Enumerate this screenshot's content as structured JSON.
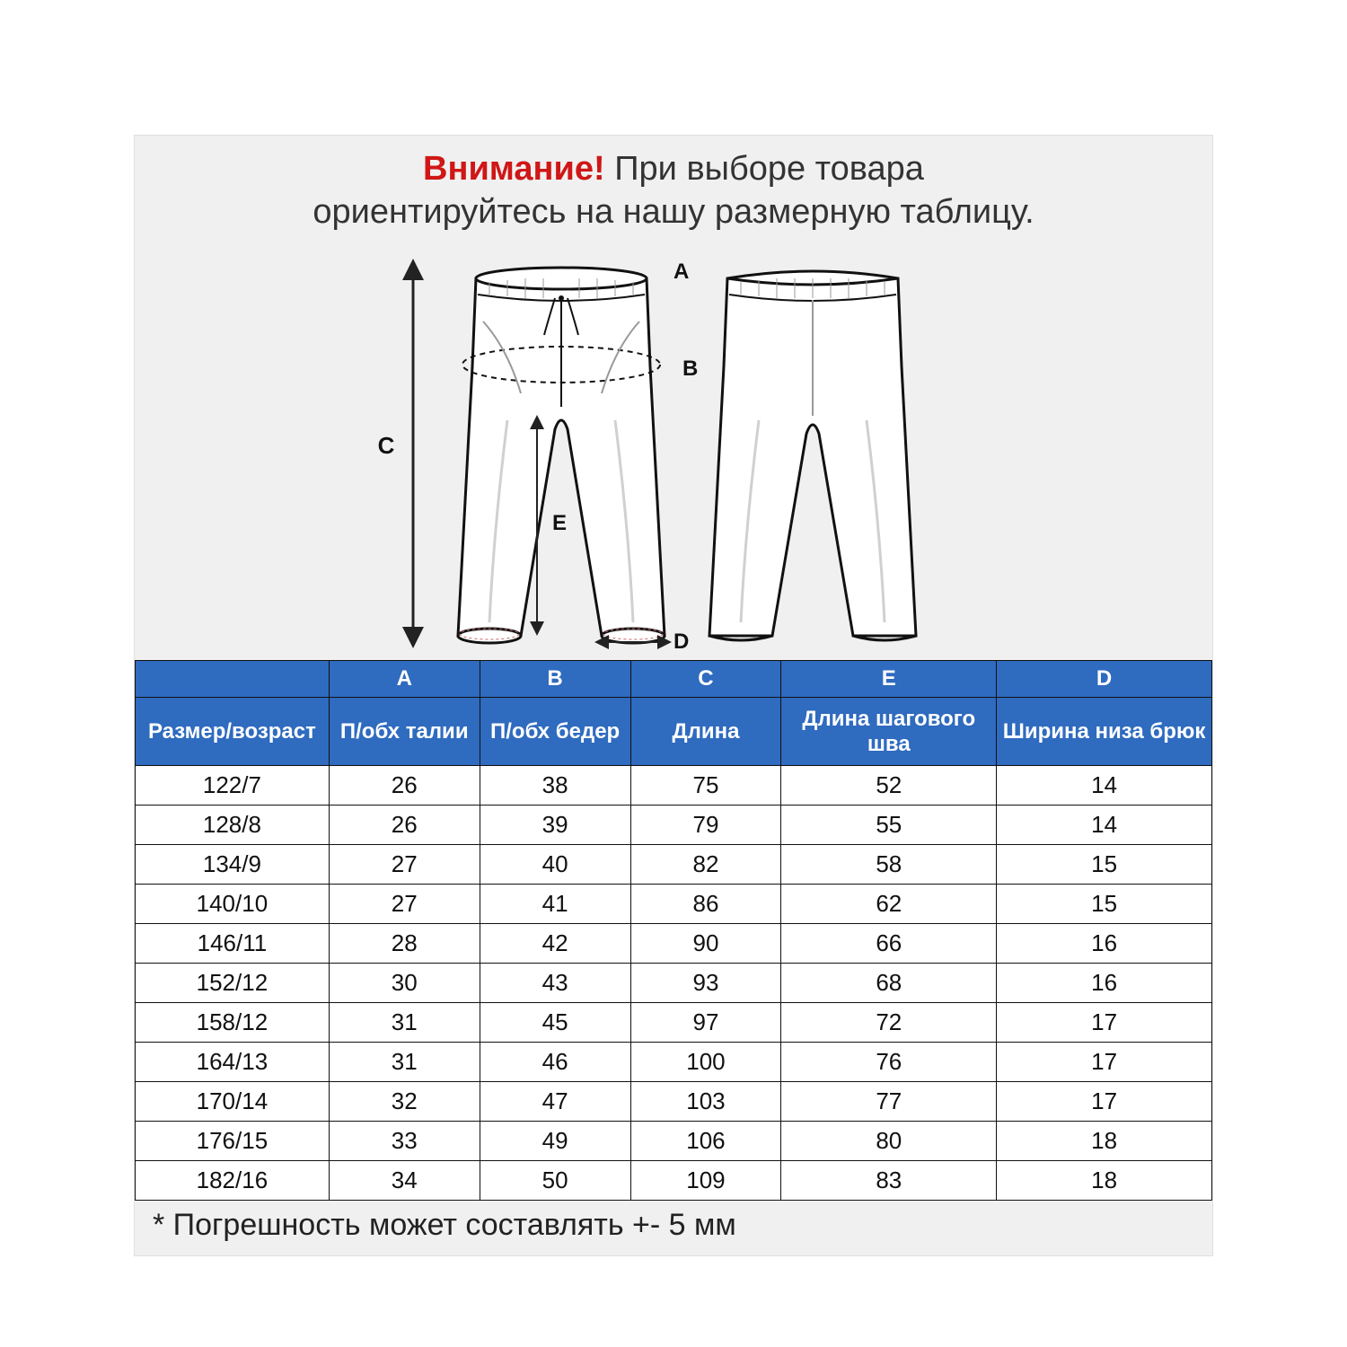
{
  "notice": {
    "warn": "Внимание!",
    "rest1": " При выборе товара",
    "line2": "ориентируйтесь на нашу размерную таблицу."
  },
  "diagram": {
    "labels": {
      "A": "A",
      "B": "B",
      "C": "C",
      "D": "D",
      "E": "E"
    },
    "stroke": "#111111",
    "arrow_stroke": "#222222",
    "bg": "#f0f0f0",
    "pant_fill": "#ffffff",
    "pant_shadow": "#d9d9d9"
  },
  "table": {
    "header_bg": "#2f6bbf",
    "header_fg": "#ffffff",
    "border": "#111111",
    "col_widths_pct": [
      18,
      14,
      14,
      14,
      20,
      20
    ],
    "letters": [
      "",
      "A",
      "B",
      "C",
      "E",
      "D"
    ],
    "labels": [
      "Размер/возраст",
      "П/обх талии",
      "П/обх бедер",
      "Длина",
      "Длина шагового шва",
      "Ширина низа брюк"
    ],
    "rows": [
      [
        "122/7",
        "26",
        "38",
        "75",
        "52",
        "14"
      ],
      [
        "128/8",
        "26",
        "39",
        "79",
        "55",
        "14"
      ],
      [
        "134/9",
        "27",
        "40",
        "82",
        "58",
        "15"
      ],
      [
        "140/10",
        "27",
        "41",
        "86",
        "62",
        "15"
      ],
      [
        "146/11",
        "28",
        "42",
        "90",
        "66",
        "16"
      ],
      [
        "152/12",
        "30",
        "43",
        "93",
        "68",
        "16"
      ],
      [
        "158/12",
        "31",
        "45",
        "97",
        "72",
        "17"
      ],
      [
        "164/13",
        "31",
        "46",
        "100",
        "76",
        "17"
      ],
      [
        "170/14",
        "32",
        "47",
        "103",
        "77",
        "17"
      ],
      [
        "176/15",
        "33",
        "49",
        "106",
        "80",
        "18"
      ],
      [
        "182/16",
        "34",
        "50",
        "109",
        "83",
        "18"
      ]
    ]
  },
  "footnote": "* Погрешность может составлять +- 5 мм"
}
